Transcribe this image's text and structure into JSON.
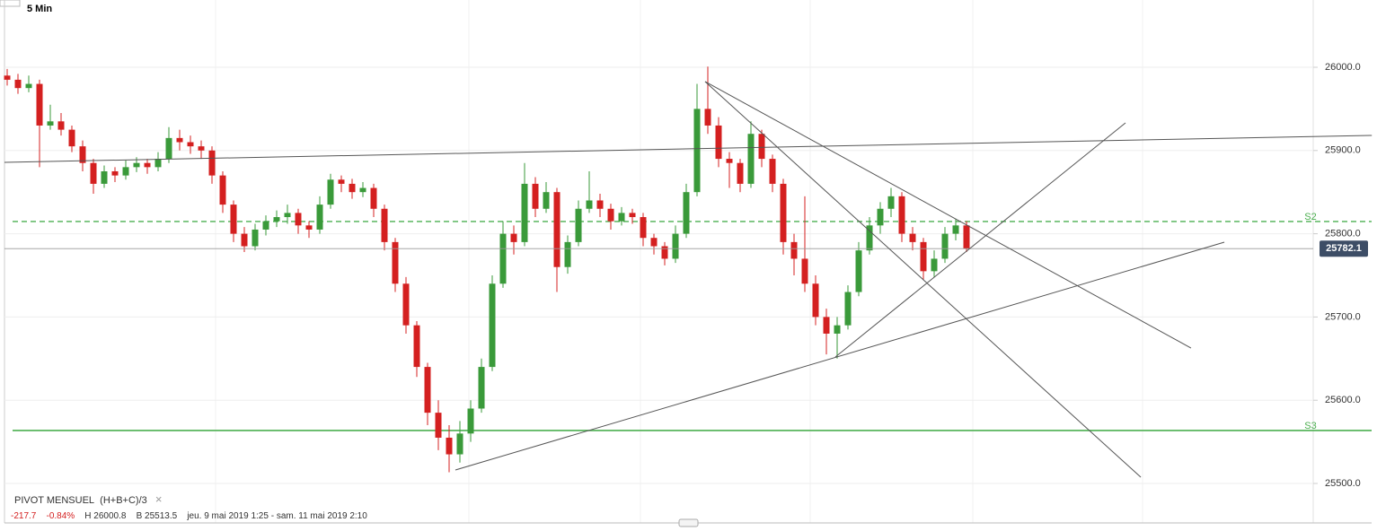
{
  "chart_data": {
    "type": "candlestick",
    "interval": "5 Min",
    "up_color": "#3a9a3a",
    "down_color": "#d42020",
    "ylim": [
      25452.6,
      26080.8
    ],
    "yticks": [
      {
        "value": 25500,
        "label": "25500.0"
      },
      {
        "value": 25600,
        "label": "25600.0"
      },
      {
        "value": 25700,
        "label": "25700.0"
      },
      {
        "value": 25800,
        "label": "25800.0"
      },
      {
        "value": 25900,
        "label": "25900.0"
      },
      {
        "value": 26000,
        "label": "26000.0"
      }
    ],
    "grid": true,
    "candles": [
      [
        25990,
        25998,
        25978,
        25985
      ],
      [
        25985,
        25992,
        25968,
        25975
      ],
      [
        25975,
        25990,
        25970,
        25980
      ],
      [
        25980,
        25985,
        25880,
        25930
      ],
      [
        25930,
        25955,
        25925,
        25935
      ],
      [
        25935,
        25945,
        25918,
        25925
      ],
      [
        25925,
        25930,
        25898,
        25905
      ],
      [
        25905,
        25912,
        25875,
        25885
      ],
      [
        25885,
        25890,
        25848,
        25860
      ],
      [
        25860,
        25882,
        25855,
        25875
      ],
      [
        25875,
        25880,
        25862,
        25870
      ],
      [
        25870,
        25888,
        25865,
        25880
      ],
      [
        25880,
        25892,
        25874,
        25885
      ],
      [
        25885,
        25890,
        25872,
        25880
      ],
      [
        25880,
        25898,
        25875,
        25890
      ],
      [
        25890,
        25928,
        25885,
        25915
      ],
      [
        25915,
        25925,
        25900,
        25910
      ],
      [
        25910,
        25918,
        25896,
        25905
      ],
      [
        25905,
        25912,
        25890,
        25900
      ],
      [
        25900,
        25905,
        25860,
        25870
      ],
      [
        25870,
        25875,
        25825,
        25835
      ],
      [
        25835,
        25840,
        25790,
        25800
      ],
      [
        25800,
        25808,
        25778,
        25785
      ],
      [
        25785,
        25812,
        25780,
        25805
      ],
      [
        25805,
        25822,
        25798,
        25815
      ],
      [
        25815,
        25828,
        25808,
        25820
      ],
      [
        25820,
        25835,
        25812,
        25825
      ],
      [
        25825,
        25830,
        25800,
        25810
      ],
      [
        25810,
        25815,
        25795,
        25805
      ],
      [
        25805,
        25845,
        25800,
        25835
      ],
      [
        25835,
        25872,
        25830,
        25865
      ],
      [
        25865,
        25870,
        25850,
        25860
      ],
      [
        25860,
        25866,
        25842,
        25850
      ],
      [
        25850,
        25862,
        25844,
        25855
      ],
      [
        25855,
        25860,
        25820,
        25830
      ],
      [
        25830,
        25835,
        25780,
        25790
      ],
      [
        25790,
        25795,
        25730,
        25740
      ],
      [
        25740,
        25748,
        25680,
        25690
      ],
      [
        25690,
        25695,
        25628,
        25640
      ],
      [
        25640,
        25645,
        25570,
        25585
      ],
      [
        25585,
        25600,
        25540,
        25555
      ],
      [
        25555,
        25570,
        25513.5,
        25535
      ],
      [
        25535,
        25575,
        25525,
        25560
      ],
      [
        25560,
        25600,
        25550,
        25590
      ],
      [
        25590,
        25650,
        25585,
        25640
      ],
      [
        25640,
        25750,
        25635,
        25740
      ],
      [
        25740,
        25815,
        25735,
        25800
      ],
      [
        25800,
        25810,
        25775,
        25790
      ],
      [
        25790,
        25885,
        25785,
        25860
      ],
      [
        25860,
        25868,
        25820,
        25830
      ],
      [
        25830,
        25862,
        25825,
        25850
      ],
      [
        25850,
        25855,
        25730,
        25760
      ],
      [
        25760,
        25798,
        25752,
        25790
      ],
      [
        25790,
        25840,
        25785,
        25830
      ],
      [
        25830,
        25875,
        25825,
        25840
      ],
      [
        25840,
        25848,
        25820,
        25830
      ],
      [
        25830,
        25836,
        25805,
        25815
      ],
      [
        25815,
        25832,
        25810,
        25825
      ],
      [
        25825,
        25830,
        25812,
        25820
      ],
      [
        25820,
        25825,
        25785,
        25795
      ],
      [
        25795,
        25800,
        25775,
        25785
      ],
      [
        25785,
        25790,
        25762,
        25770
      ],
      [
        25770,
        25810,
        25765,
        25800
      ],
      [
        25800,
        25860,
        25795,
        25850
      ],
      [
        25850,
        25980,
        25845,
        25950
      ],
      [
        25950,
        26000.8,
        25920,
        25930
      ],
      [
        25930,
        25940,
        25880,
        25890
      ],
      [
        25890,
        25898,
        25855,
        25885
      ],
      [
        25885,
        25890,
        25850,
        25860
      ],
      [
        25860,
        25935,
        25855,
        25920
      ],
      [
        25920,
        25925,
        25880,
        25890
      ],
      [
        25890,
        25895,
        25850,
        25860
      ],
      [
        25860,
        25866,
        25775,
        25790
      ],
      [
        25790,
        25800,
        25750,
        25770
      ],
      [
        25770,
        25845,
        25730,
        25740
      ],
      [
        25740,
        25750,
        25690,
        25700
      ],
      [
        25700,
        25710,
        25655,
        25680
      ],
      [
        25680,
        25700,
        25650,
        25690
      ],
      [
        25690,
        25738,
        25685,
        25730
      ],
      [
        25730,
        25790,
        25725,
        25780
      ],
      [
        25780,
        25820,
        25775,
        25810
      ],
      [
        25810,
        25838,
        25800,
        25830
      ],
      [
        25830,
        25855,
        25820,
        25845
      ],
      [
        25845,
        25850,
        25790,
        25800
      ],
      [
        25800,
        25808,
        25780,
        25790
      ],
      [
        25790,
        25795,
        25745,
        25755
      ],
      [
        25755,
        25780,
        25748,
        25770
      ],
      [
        25770,
        25808,
        25765,
        25800
      ],
      [
        25800,
        25818,
        25792,
        25810
      ],
      [
        25810,
        25815,
        25778,
        25782.1
      ]
    ],
    "pivots": [
      {
        "name": "S2",
        "value": 25814.7,
        "style": "dashed",
        "color": "#4caf50"
      },
      {
        "name": "S3",
        "value": 25563.6,
        "style": "solid",
        "color": "#4caf50"
      }
    ],
    "trendlines": [
      [
        -0.25,
        25885.8,
        126.6,
        25918.1
      ],
      [
        64.75,
        25982.8,
        109.83,
        25662.7
      ],
      [
        64.75,
        25982.8,
        105.17,
        25507.5
      ],
      [
        41.58,
        25516.2,
        112.92,
        25789.9
      ],
      [
        76.83,
        25651.9,
        103.75,
        25933.2
      ]
    ],
    "trendline_color": "#555555",
    "indicator": "PIVOT MENSUEL",
    "formula": "(H+B+C)/3",
    "close_icon": "×",
    "change": "-217.7",
    "change_pct": "-0.84%",
    "high_label": "H 26000.8",
    "low_label": "B 25513.5",
    "range_label": "jeu. 9 mai 2019 1:25 - sam. 11 mai 2019 2:10"
  }
}
